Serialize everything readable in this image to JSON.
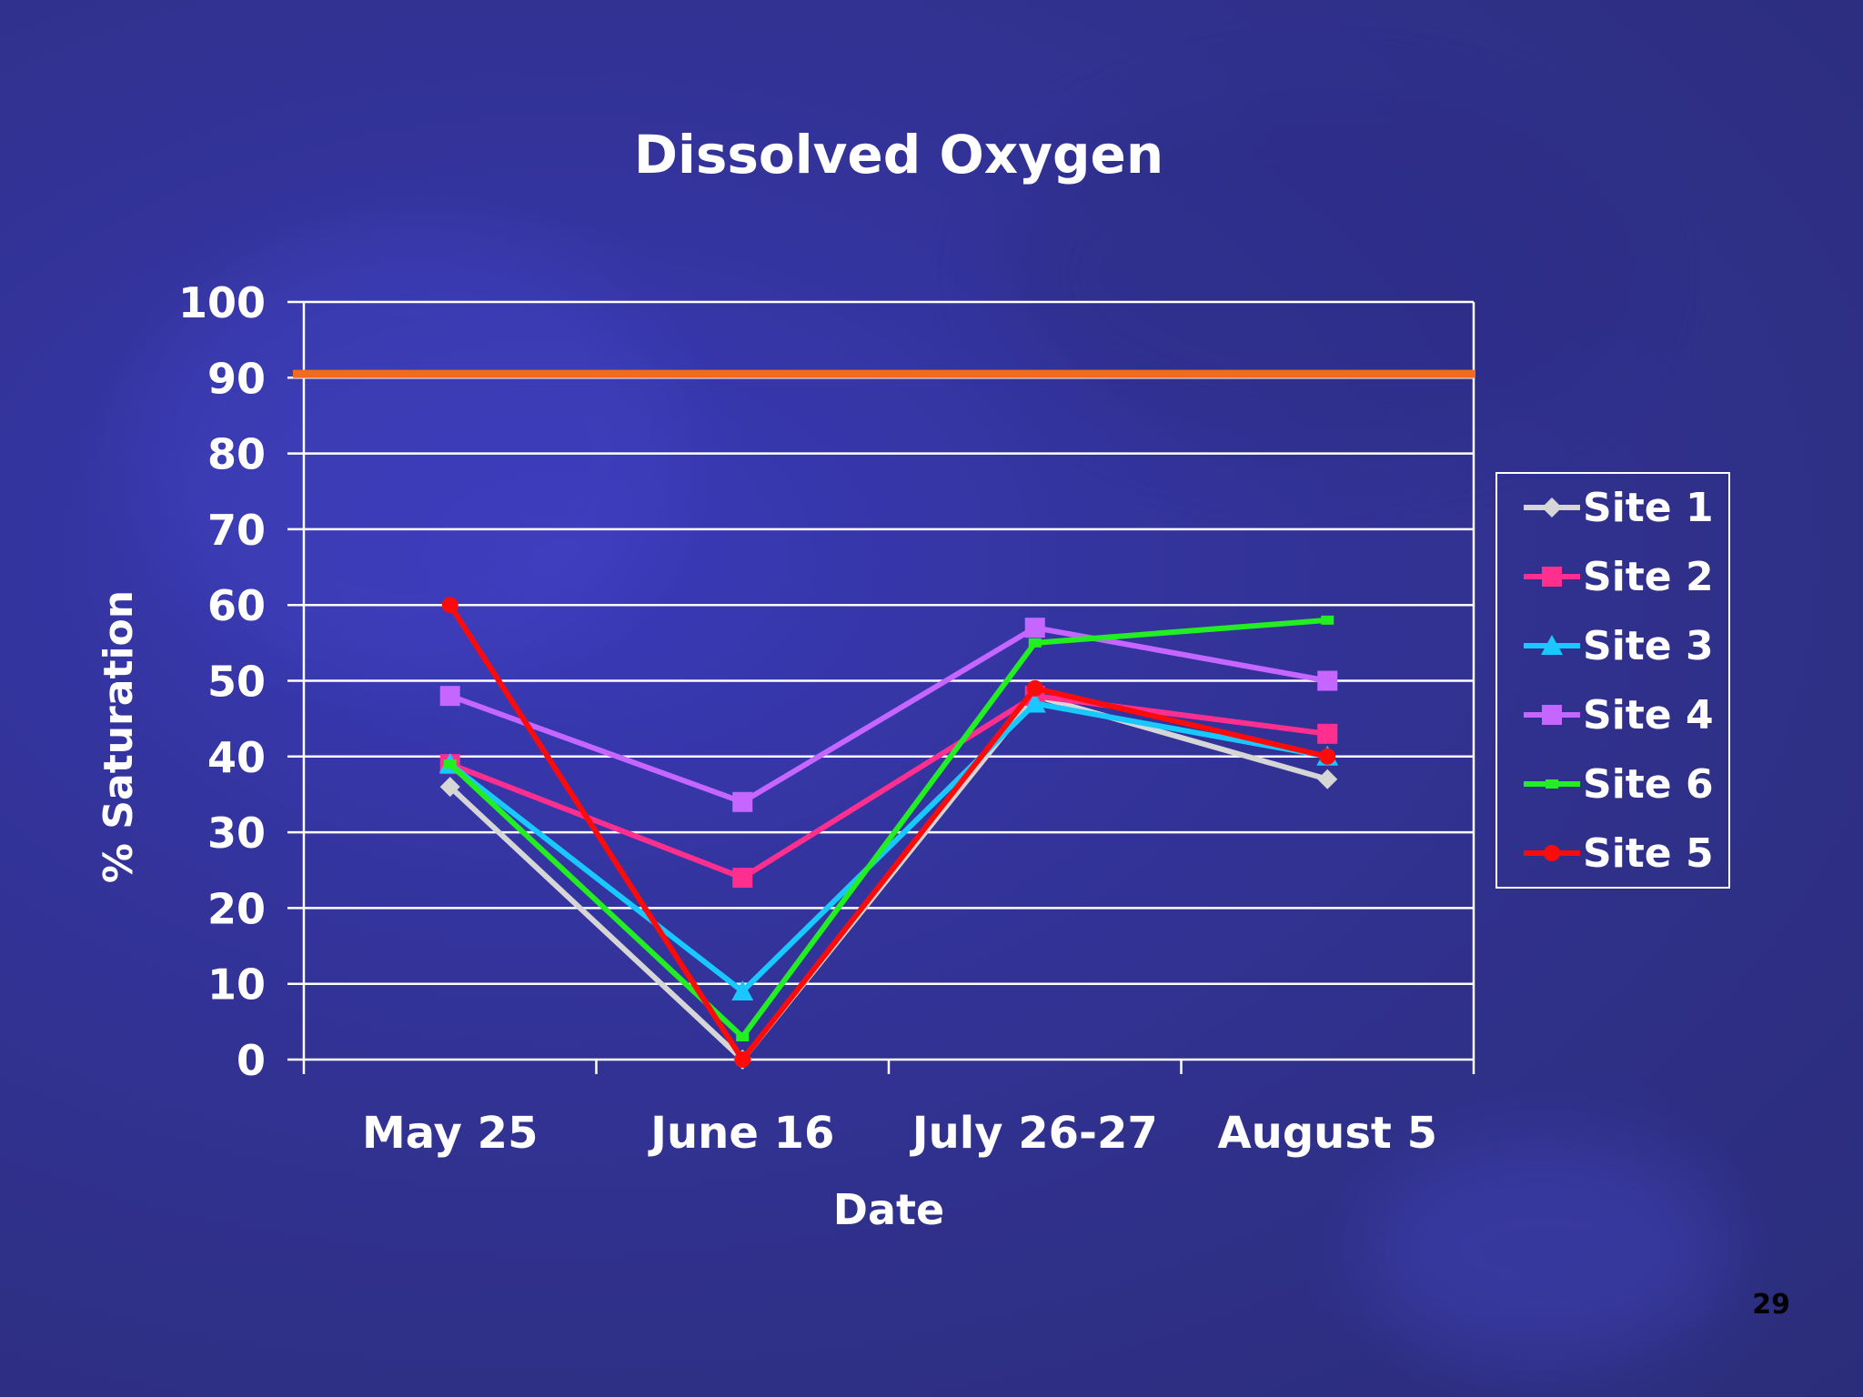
{
  "slide": {
    "page_number": "29"
  },
  "colors": {
    "background": "#3333a0",
    "text": "#ffffff",
    "gridline": "#ffffff",
    "threshold": "#f26b1d"
  },
  "chart_data": {
    "type": "line",
    "title": "Dissolved Oxygen",
    "xlabel": "Date",
    "ylabel": "% Saturation",
    "categories": [
      "May 25",
      "June 16",
      "July 26-27",
      "August 5"
    ],
    "ylim": [
      0,
      100
    ],
    "yticks": [
      0,
      10,
      20,
      30,
      40,
      50,
      60,
      70,
      80,
      90,
      100
    ],
    "grid": true,
    "legend_position": "right",
    "reference_line": {
      "y": 90.5,
      "color": "#f26b1d"
    },
    "series": [
      {
        "name": "Site 1",
        "color": "#d6d6d6",
        "marker": "diamond",
        "values": [
          36,
          0,
          48,
          37
        ]
      },
      {
        "name": "Site 2",
        "color": "#ff2f8f",
        "marker": "square",
        "values": [
          39,
          24,
          48,
          43
        ]
      },
      {
        "name": "Site 3",
        "color": "#19c8ff",
        "marker": "triangle",
        "values": [
          39,
          9,
          47,
          40
        ]
      },
      {
        "name": "Site 4",
        "color": "#c466ff",
        "marker": "square",
        "values": [
          48,
          34,
          57,
          50
        ]
      },
      {
        "name": "Site 6",
        "color": "#22ee22",
        "marker": "dash",
        "values": [
          39,
          3,
          55,
          58
        ]
      },
      {
        "name": "Site 5",
        "color": "#ff0a0a",
        "marker": "circle",
        "values": [
          60,
          0,
          49,
          40
        ]
      }
    ]
  }
}
